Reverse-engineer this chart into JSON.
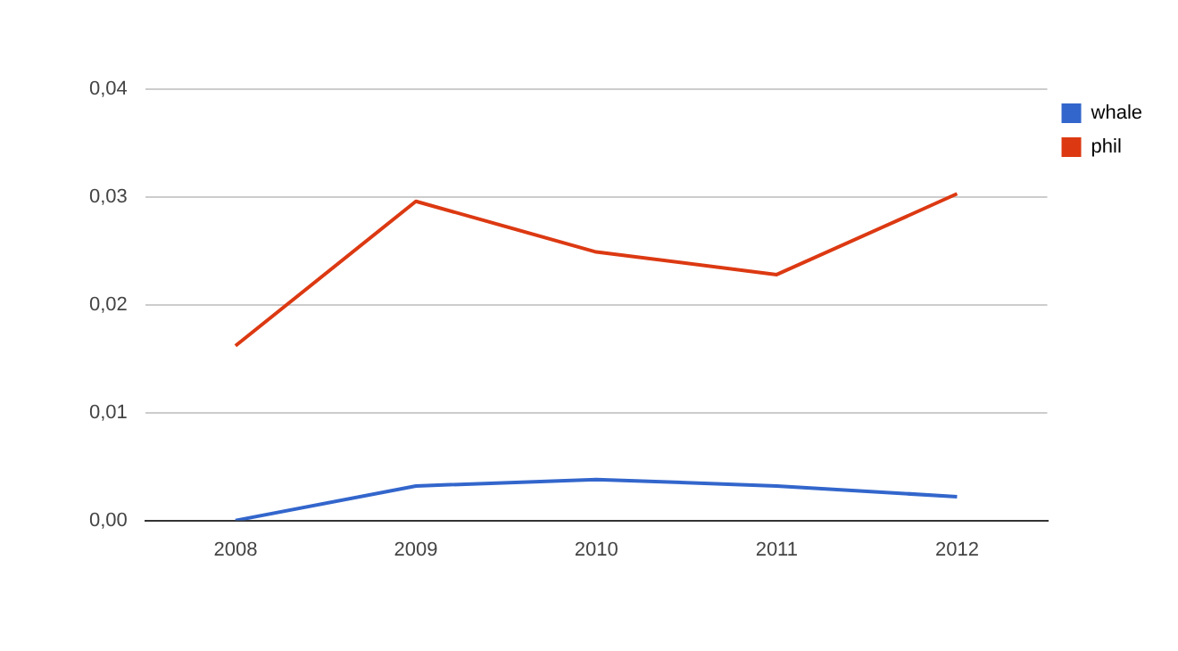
{
  "chart_data": {
    "type": "line",
    "categories": [
      "2008",
      "2009",
      "2010",
      "2011",
      "2012"
    ],
    "series": [
      {
        "name": "whale",
        "color": "#3366cc",
        "values": [
          0.0,
          0.0032,
          0.0038,
          0.0032,
          0.0022
        ]
      },
      {
        "name": "phil",
        "color": "#dc3912",
        "values": [
          0.0162,
          0.0296,
          0.0249,
          0.0228,
          0.0303
        ]
      }
    ],
    "ylim": [
      0,
      0.04
    ],
    "yticks": [
      {
        "value": 0,
        "label": "0,00"
      },
      {
        "value": 0.01,
        "label": "0,01"
      },
      {
        "value": 0.02,
        "label": "0,02"
      },
      {
        "value": 0.03,
        "label": "0,03"
      },
      {
        "value": 0.04,
        "label": "0,04"
      }
    ],
    "grid": "y",
    "legend": "top right",
    "marker": "none",
    "line_style": "solid"
  }
}
